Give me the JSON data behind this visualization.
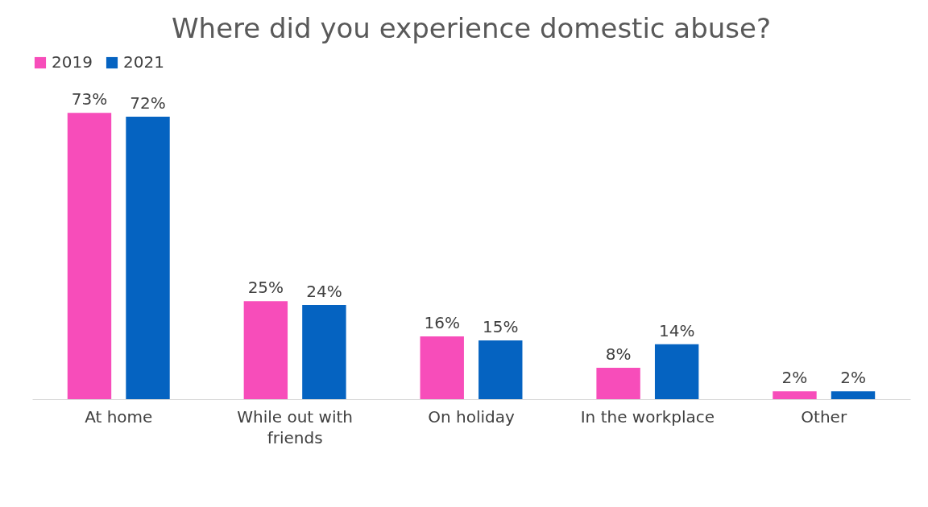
{
  "chart_data": {
    "type": "bar",
    "title": "Where did you experience domestic abuse?",
    "categories": [
      "At home",
      "While out with friends",
      "On holiday",
      "In the workplace",
      "Other"
    ],
    "legend": "top",
    "series": [
      {
        "name": "2019",
        "color": "#f74dba",
        "values": [
          73,
          25,
          16,
          8,
          2
        ],
        "value_labels": [
          "73%",
          "25%",
          "16%",
          "8%",
          "2%"
        ]
      },
      {
        "name": "2021",
        "color": "#0563c1",
        "values": [
          72,
          24,
          15,
          14,
          2
        ],
        "value_labels": [
          "72%",
          "24%",
          "15%",
          "14%",
          "2%"
        ]
      }
    ]
  }
}
